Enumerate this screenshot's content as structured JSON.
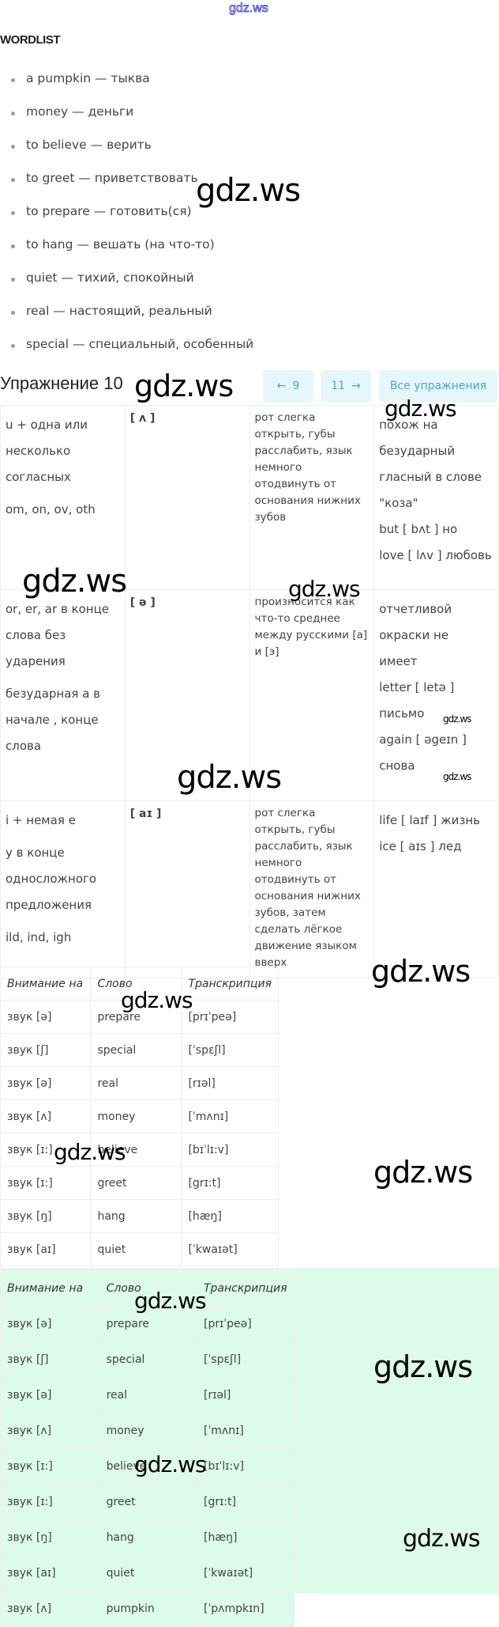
{
  "site_watermark": "gdz.ws",
  "wordlist": {
    "title": "WORDLIST",
    "items": [
      "a pumpkin — тыква",
      "money — деньги",
      "to believe — верить",
      "to greet — приветствовать",
      "to prepare — готовить(ся)",
      "to hang — вешать (на что-то)",
      "quiet — тихий, спокойный",
      "real — настоящий, реальный",
      "special — специальный, особенный"
    ]
  },
  "exercise": {
    "title": "Упражнение 10",
    "prev": {
      "arrow": "←",
      "label": "9"
    },
    "next": {
      "arrow": "→",
      "label": "11"
    },
    "all_label": "Все упражнения"
  },
  "rules_table": [
    {
      "spelling": [
        "u + одна или",
        "несколько",
        "согласных",
        "om, on, ov, oth"
      ],
      "sound": "[ ʌ ]",
      "articulation": "рот слегка открыть, губы расслабить, язык немного отодвинуть от основания нижних зубов",
      "examples": [
        "похож на",
        "безударный",
        "гласный в слове",
        "\"коза\"",
        "but [ bʌt ] но",
        "love [ lʌv ] любовь"
      ]
    },
    {
      "spelling": [
        "or, er, ar в конце",
        "слова без",
        "ударения",
        "безударная а в",
        "начале , конце",
        "слова"
      ],
      "sound": "[ ə ]",
      "articulation": "произносится как что-то среднее между русскими [а] и [э]",
      "examples": [
        "отчетливой",
        "окраски не",
        "имеет",
        "letter [ letə ]",
        "письмо",
        "again [ əgeɪn ]",
        "снова"
      ]
    },
    {
      "spelling": [
        "i + немая е",
        "y в конце",
        "односложного",
        "предложения",
        "ild, ind, igh"
      ],
      "sound": "[ aɪ ]",
      "articulation": "рот слегка открыть, губы расслабить, язык немного отодвинуть от основания нижних зубов, затем сделать лёгкое движение языком вверх",
      "examples": [
        "life [ laɪf ] жизнь",
        "ice [ aɪs ] лед"
      ]
    }
  ],
  "words_table": {
    "headers": [
      "Внимание на",
      "Слово",
      "Транскрипция"
    ],
    "rows": [
      [
        "звук [ə]",
        "prepare",
        "[prɪˈpeə]"
      ],
      [
        "звук [ʃ]",
        "special",
        "[ˈspɛʃl]"
      ],
      [
        "звук [ə]",
        "real",
        "[rɪəl]"
      ],
      [
        "звук [ʌ]",
        "money",
        "[ˈmʌnɪ]"
      ],
      [
        "звук [ɪ:]",
        "believe",
        "[bɪˈlɪ:v]"
      ],
      [
        "звук [ɪ:]",
        "greet",
        "[grɪ:t]"
      ],
      [
        "звук [ŋ]",
        "hang",
        "[hæŋ]"
      ],
      [
        "звук [aɪ]",
        "quiet",
        "[ˈkwaɪət]"
      ],
      [
        "звук [ʌ]",
        "pumpkin",
        "[ˈpʌmpkɪn]"
      ]
    ]
  },
  "colors": {
    "nav_bg": "#e6f7fb",
    "nav_text": "#46a8c8",
    "answer_bg": "#dcfbea"
  }
}
